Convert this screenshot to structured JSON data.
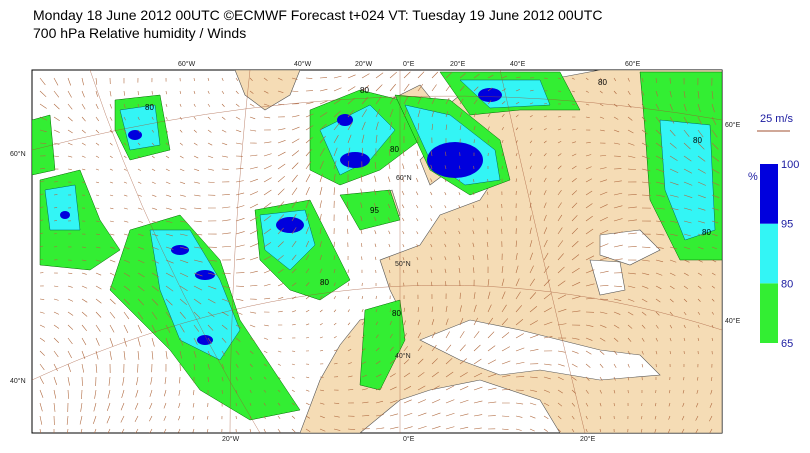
{
  "header": {
    "line1": "Monday 18 June 2012 00UTC ©ECMWF Forecast t+024 VT: Tuesday 19 June 2012 00UTC",
    "line2": "700 hPa Relative humidity / Winds"
  },
  "graticule": {
    "top": [
      "60°W",
      "40°W",
      "20°W",
      "0°E",
      "20°E",
      "40°E",
      "60°E"
    ],
    "bottom": [
      "20°W",
      "0°E",
      "20°E"
    ],
    "left": [
      "60°N",
      "40°N"
    ],
    "right": [
      "60°E",
      "40°E"
    ],
    "inner": [
      "60°N",
      "50°N",
      "40°N"
    ]
  },
  "contour_labels": [
    "80",
    "80",
    "80",
    "95",
    "80",
    "80",
    "80",
    "80",
    "80"
  ],
  "legend": {
    "wind_reference": "25 m/s",
    "unit": "%",
    "levels": [
      65,
      80,
      95,
      100
    ],
    "colors": [
      "#33ee33",
      "#33f5f5",
      "#0000dd"
    ]
  }
}
